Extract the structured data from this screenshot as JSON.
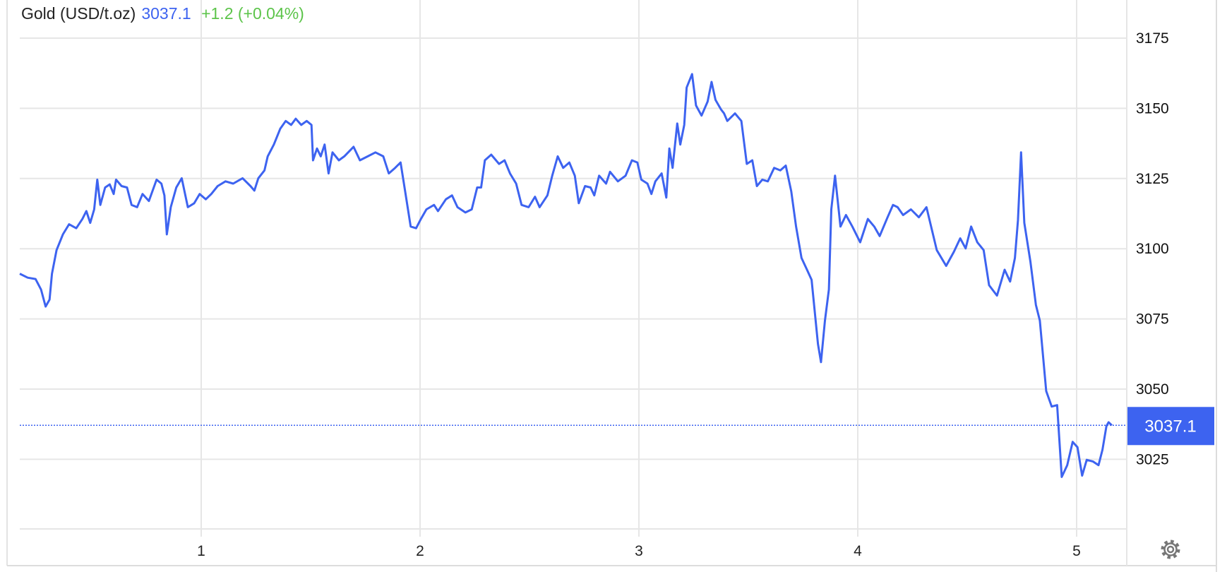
{
  "header": {
    "instrument": "Gold (USD/t.oz)",
    "price": "3037.1",
    "change": "+1.2 (+0.04%)"
  },
  "colors": {
    "line": "#3d63f0",
    "price": "#3d63f0",
    "change": "#5cc44a",
    "grid": "#e6e6e6"
  },
  "chart_data": {
    "type": "line",
    "title": "Gold (USD/t.oz)",
    "xlabel": "",
    "ylabel": "",
    "x_ticks": [
      "1",
      "2",
      "3",
      "4",
      "5"
    ],
    "y_ticks": [
      3025,
      3050,
      3075,
      3100,
      3125,
      3150,
      3175
    ],
    "ylim": [
      2995,
      3188
    ],
    "xlim": [
      0.17,
      5.22
    ],
    "y_axis_position": "right",
    "grid": true,
    "last_price_label": "3037.1",
    "last_price": 3037.1,
    "series": [
      {
        "x": [
          0.171,
          0.207,
          0.243,
          0.268,
          0.289,
          0.307,
          0.318,
          0.339,
          0.368,
          0.396,
          0.429,
          0.457,
          0.475,
          0.493,
          0.511,
          0.525,
          0.539,
          0.561,
          0.582,
          0.6,
          0.611,
          0.636,
          0.661,
          0.682,
          0.707,
          0.732,
          0.761,
          0.796,
          0.818,
          0.832,
          0.843,
          0.861,
          0.886,
          0.911,
          0.939,
          0.968,
          0.993,
          1.021,
          1.046,
          1.075,
          1.111,
          1.146,
          1.189,
          1.225,
          1.243,
          1.261,
          1.289,
          1.304,
          1.332,
          1.361,
          1.386,
          1.411,
          1.432,
          1.457,
          1.482,
          1.504,
          1.511,
          1.529,
          1.546,
          1.564,
          1.582,
          1.6,
          1.629,
          1.654,
          1.696,
          1.725,
          1.761,
          1.796,
          1.832,
          1.857,
          1.886,
          1.911,
          1.932,
          1.957,
          1.982,
          2.004,
          2.029,
          2.064,
          2.082,
          2.118,
          2.146,
          2.171,
          2.207,
          2.236,
          2.261,
          2.279,
          2.296,
          2.325,
          2.361,
          2.386,
          2.411,
          2.439,
          2.464,
          2.496,
          2.525,
          2.546,
          2.582,
          2.604,
          2.629,
          2.654,
          2.682,
          2.707,
          2.725,
          2.754,
          2.779,
          2.796,
          2.818,
          2.85,
          2.868,
          2.904,
          2.939,
          2.968,
          2.993,
          3.011,
          3.039,
          3.057,
          3.075,
          3.104,
          3.125,
          3.139,
          3.154,
          3.175,
          3.189,
          3.207,
          3.218,
          3.243,
          3.261,
          3.286,
          3.314,
          3.332,
          3.35,
          3.375,
          3.389,
          3.404,
          3.439,
          3.468,
          3.493,
          3.518,
          3.539,
          3.564,
          3.589,
          3.618,
          3.646,
          3.671,
          3.696,
          3.718,
          3.743,
          3.768,
          3.789,
          3.818,
          3.832,
          3.85,
          3.868,
          3.879,
          3.896,
          3.921,
          3.946,
          3.975,
          4.011,
          4.046,
          4.075,
          4.1,
          4.136,
          4.161,
          4.182,
          4.207,
          4.243,
          4.279,
          4.314,
          4.361,
          4.404,
          4.439,
          4.468,
          4.493,
          4.518,
          4.546,
          4.575,
          4.6,
          4.636,
          4.671,
          4.696,
          4.718,
          4.732,
          4.746,
          4.761,
          4.789,
          4.814,
          4.832,
          4.861,
          4.886,
          4.911,
          4.932,
          4.957,
          4.982,
          5.004,
          5.025,
          5.046,
          5.075,
          5.1,
          5.118,
          5.136,
          5.146,
          5.161
        ],
        "y": [
          3091.1,
          3089.7,
          3089.2,
          3085.5,
          3079.4,
          3081.9,
          3091.1,
          3099.5,
          3105.1,
          3108.7,
          3107.3,
          3110.6,
          3113.4,
          3109.2,
          3114.0,
          3124.6,
          3115.6,
          3121.8,
          3122.9,
          3119.5,
          3124.6,
          3122.3,
          3121.8,
          3115.6,
          3114.8,
          3119.5,
          3117.0,
          3124.6,
          3123.2,
          3119.0,
          3105.1,
          3114.8,
          3121.8,
          3125.1,
          3114.8,
          3116.2,
          3119.5,
          3117.6,
          3119.5,
          3122.3,
          3124.0,
          3123.2,
          3125.1,
          3122.3,
          3120.7,
          3125.1,
          3127.9,
          3132.9,
          3137.1,
          3142.7,
          3145.5,
          3144.1,
          3146.3,
          3144.1,
          3145.5,
          3144.1,
          3131.5,
          3135.7,
          3132.9,
          3137.1,
          3126.8,
          3134.3,
          3131.5,
          3132.9,
          3136.3,
          3131.5,
          3132.9,
          3134.3,
          3132.9,
          3126.8,
          3128.8,
          3130.7,
          3120.4,
          3107.9,
          3107.3,
          3110.6,
          3114.0,
          3115.6,
          3113.4,
          3117.6,
          3119.0,
          3114.8,
          3112.9,
          3114.0,
          3121.8,
          3121.8,
          3131.5,
          3133.5,
          3130.2,
          3131.5,
          3126.8,
          3123.2,
          3115.6,
          3114.8,
          3118.5,
          3114.8,
          3119.0,
          3126.0,
          3132.9,
          3128.8,
          3130.7,
          3126.0,
          3116.2,
          3122.3,
          3121.8,
          3119.0,
          3126.0,
          3123.2,
          3127.4,
          3124.0,
          3126.0,
          3131.5,
          3130.7,
          3124.6,
          3123.2,
          3119.5,
          3124.0,
          3126.8,
          3118.2,
          3135.7,
          3128.8,
          3144.6,
          3137.1,
          3144.1,
          3157.4,
          3162.2,
          3151.0,
          3147.4,
          3152.4,
          3159.4,
          3153.0,
          3149.6,
          3148.2,
          3145.5,
          3148.2,
          3145.5,
          3130.2,
          3131.5,
          3122.3,
          3124.6,
          3124.0,
          3128.8,
          3127.9,
          3129.6,
          3120.4,
          3107.9,
          3096.7,
          3092.5,
          3088.9,
          3066.1,
          3059.6,
          3074.4,
          3085.5,
          3114.0,
          3126.0,
          3107.9,
          3112.0,
          3107.9,
          3102.3,
          3110.6,
          3107.9,
          3104.5,
          3111.2,
          3115.6,
          3114.8,
          3112.0,
          3114.0,
          3111.2,
          3114.8,
          3099.5,
          3093.9,
          3098.9,
          3103.7,
          3100.1,
          3107.9,
          3102.3,
          3099.5,
          3087.0,
          3083.3,
          3092.5,
          3088.3,
          3096.7,
          3110.1,
          3134.3,
          3109.2,
          3095.3,
          3080.0,
          3074.4,
          3049.3,
          3043.8,
          3044.3,
          3018.7,
          3022.9,
          3031.2,
          3029.3,
          3019.2,
          3024.8,
          3024.2,
          3022.9,
          3028.4,
          3036.8,
          3038.2,
          3037.1
        ]
      }
    ]
  },
  "settings_icon": "gear-icon"
}
